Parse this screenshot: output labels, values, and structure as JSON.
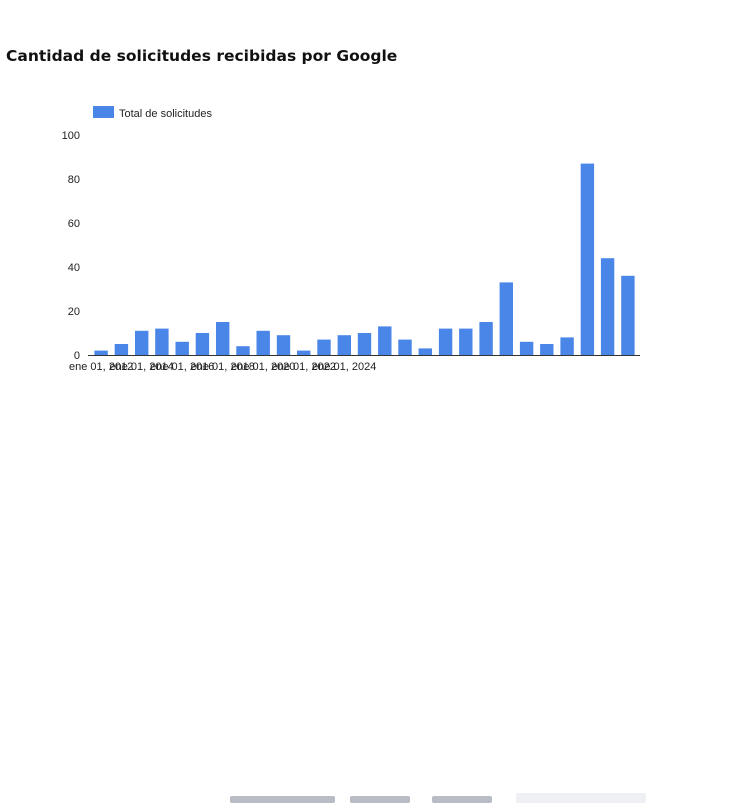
{
  "page": {
    "title": "Cantidad de solicitudes recibidas por Google"
  },
  "colors": {
    "bar": "#4a86e8",
    "axis": "#333333",
    "text": "#222222",
    "footer_text": "#b8bcc4",
    "footer_box": "#eef0f3"
  },
  "chart_data": {
    "type": "bar",
    "title": "",
    "xlabel": "",
    "ylabel": "",
    "ylim": [
      0,
      100
    ],
    "yticks": [
      0,
      20,
      40,
      60,
      80,
      100
    ],
    "grid": false,
    "legend_position": "top-left",
    "series": [
      {
        "name": "Total de solicitudes",
        "color": "#4a86e8",
        "values": [
          2,
          5,
          11,
          12,
          6,
          10,
          15,
          4,
          11,
          9,
          2,
          7,
          9,
          10,
          13,
          7,
          3,
          12,
          12,
          15,
          33,
          6,
          5,
          8,
          87,
          44,
          36
        ]
      }
    ],
    "categories": [
      "",
      "",
      "",
      "",
      "",
      "",
      "",
      "",
      "",
      "",
      "",
      "",
      "",
      "",
      "",
      "",
      "",
      "",
      "",
      "",
      "",
      "",
      "",
      "",
      "",
      "",
      ""
    ],
    "x_tick_labels": [
      "ene 01, 2012",
      "ene 01, 2014",
      "ene 01, 2016",
      "ene 01, 2018",
      "ene 01, 2020",
      "ene 01, 2022",
      "ene 01, 2024"
    ]
  }
}
